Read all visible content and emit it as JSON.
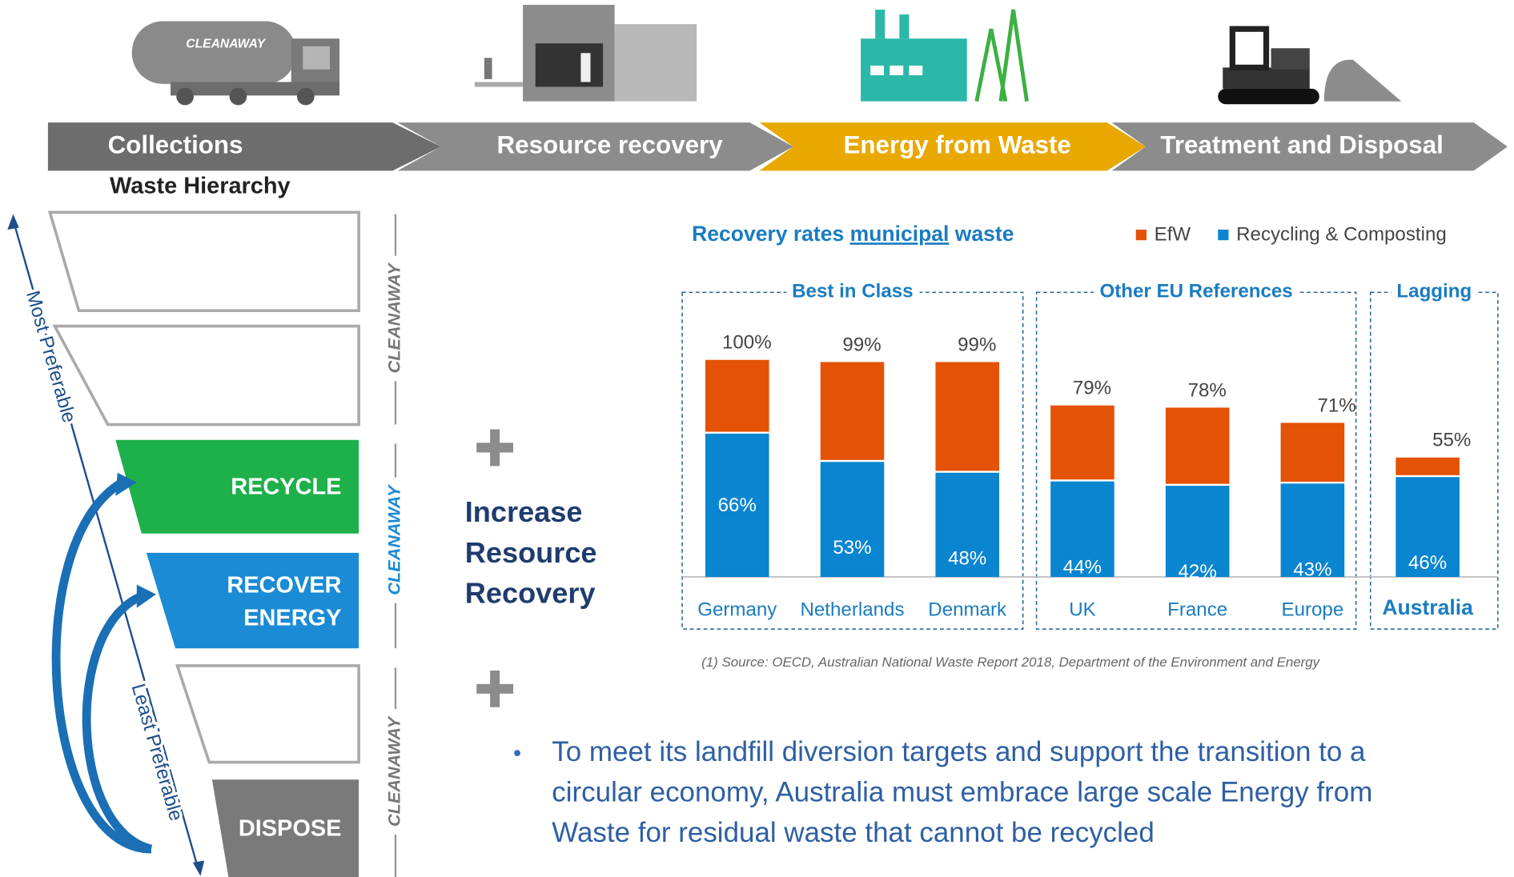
{
  "pipeline": [
    "Collections",
    "Resource recovery",
    "Energy from Waste",
    "Treatment and Disposal"
  ],
  "brand": "CLEANAWAY",
  "hierarchy": {
    "title": "Waste Hierarchy",
    "levels": [
      "RECYCLE",
      "RECOVER ENERGY",
      "DISPOSE"
    ],
    "most": "Most Preferable",
    "least": "Least Preferable"
  },
  "message": [
    "Increase",
    "Resource",
    "Recovery"
  ],
  "bullet": [
    "To meet its landfill diversion targets and support the transition to a",
    "circular economy, Australia must embrace large scale Energy from",
    "Waste for residual waste that cannot be recycled"
  ],
  "chart_data": {
    "type": "stacked_bar",
    "title_parts": [
      "Recovery rates",
      "municipal",
      "waste"
    ],
    "categories": [
      "Germany",
      "Netherlands",
      "Denmark",
      "UK",
      "France",
      "Europe",
      "Australia"
    ],
    "groups": [
      {
        "name": "Best in Class",
        "start": 0,
        "end": 2
      },
      {
        "name": "Other EU References",
        "start": 3,
        "end": 5
      },
      {
        "name": "Lagging",
        "start": 6,
        "end": 6
      }
    ],
    "series": [
      {
        "name": "EfW",
        "color": "#e35205",
        "values": [
          34,
          46,
          51,
          35,
          36,
          28,
          9
        ]
      },
      {
        "name": "Recycling & Composting",
        "color": "#0a85d0",
        "values": [
          66,
          53,
          48,
          44,
          42,
          43,
          46
        ],
        "value_labels": [
          "66%",
          "53%",
          "48%",
          "44%",
          "42%",
          "43%",
          "46%"
        ]
      }
    ],
    "totals": [
      100,
      99,
      99,
      79,
      78,
      71,
      55
    ],
    "total_labels": [
      "100%",
      "99%",
      "99%",
      "79%",
      "78%",
      "71%",
      "55%"
    ],
    "source": "(1) Source: OECD, Australian National Waste Report 2018, Department of the Environment and Energy"
  }
}
